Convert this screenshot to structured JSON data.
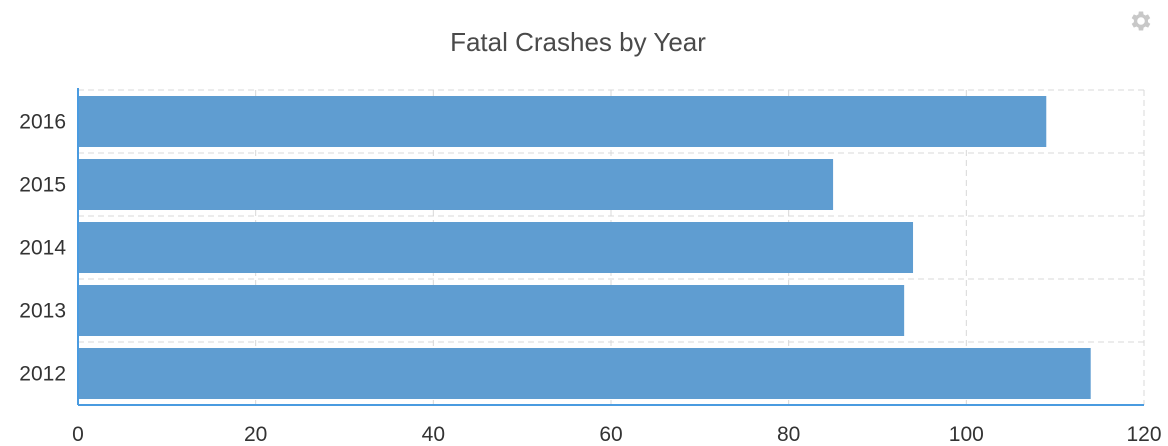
{
  "chart_data": {
    "type": "bar",
    "orientation": "horizontal",
    "title": "Fatal Crashes by Year",
    "xlabel": "",
    "ylabel": "",
    "categories": [
      "2016",
      "2015",
      "2014",
      "2013",
      "2012"
    ],
    "values": [
      109,
      85,
      94,
      93,
      114
    ],
    "xlim": [
      0,
      120
    ],
    "xticks": [
      "0",
      "20",
      "40",
      "60",
      "80",
      "100",
      "120"
    ],
    "grid": true,
    "bar_color": "#5f9dd1",
    "axis_color": "#4a9be0",
    "grid_color": "#d8d8d8"
  },
  "toolbar": {
    "settings_icon": "gear-icon"
  }
}
